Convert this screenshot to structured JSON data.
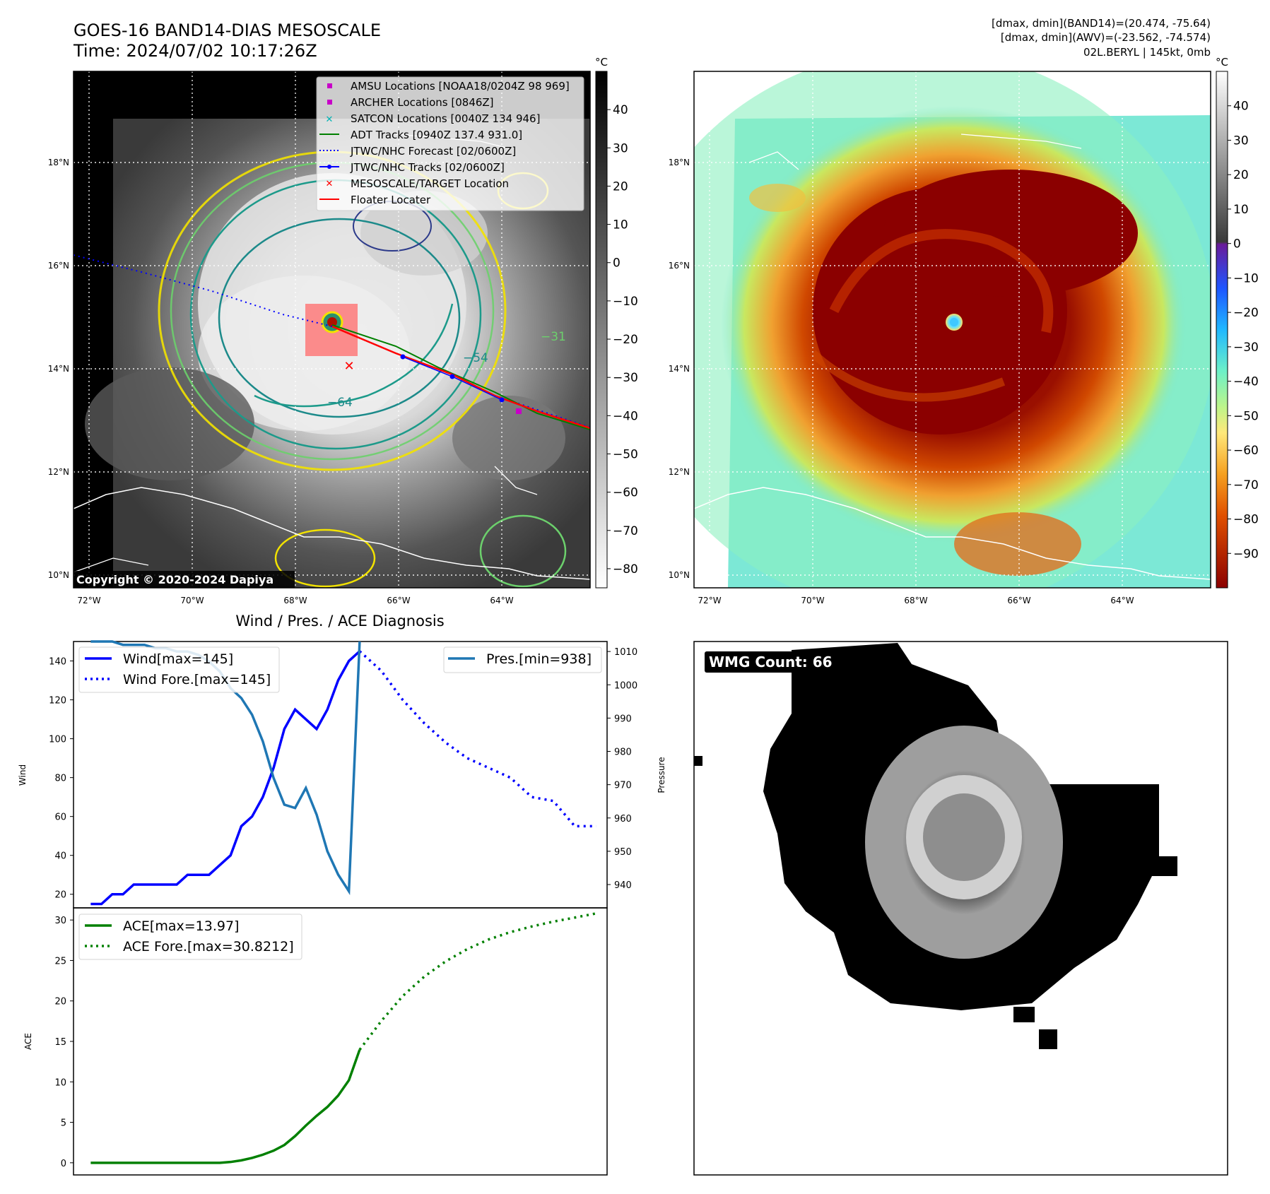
{
  "header": {
    "title": "GOES-16 BAND14-DIAS MESOSCALE",
    "time": "Time: 2024/07/02 10:17:26Z",
    "stats": [
      "[dmax, dmin](BAND14)=(20.474, -75.64)",
      "[dmax, dmin](AWV)=(-23.562, -74.574)",
      "02L.BERYL | 145kt, 0mb"
    ]
  },
  "map_left": {
    "lat_labels": [
      "18°N",
      "16°N",
      "14°N",
      "12°N",
      "10°N"
    ],
    "lon_labels": [
      "72°W",
      "70°W",
      "68°W",
      "66°W",
      "64°W"
    ],
    "lat_values": [
      18,
      16,
      14,
      12,
      10
    ],
    "lon_values": [
      -72,
      -70,
      -68,
      -66,
      -64
    ],
    "cbar_unit": "°C",
    "cbar_ticks": [
      "40",
      "30",
      "20",
      "10",
      "0",
      "−10",
      "−20",
      "−30",
      "−40",
      "−50",
      "−60",
      "−70",
      "−80"
    ],
    "cbar_values": [
      40,
      30,
      20,
      10,
      0,
      -10,
      -20,
      -30,
      -40,
      -50,
      -60,
      -70,
      -80
    ],
    "cbar_range": [
      -85,
      50
    ],
    "contour_labels": [
      "−64",
      "−54",
      "−31"
    ],
    "copyright": "Copyright © 2020-2024 Dapiya",
    "legend": [
      {
        "label": "AMSU Locations [NOAA18/0204Z 98 969]",
        "color": "#c800c8",
        "marker": "square"
      },
      {
        "label": "ARCHER Locations [0846Z]",
        "color": "#c800c8",
        "marker": "square"
      },
      {
        "label": "SATCON Locations [0040Z 134 946]",
        "color": "#00b4b4",
        "marker": "x"
      },
      {
        "label": "ADT Tracks [0940Z 137.4 931.0]",
        "color": "#008000",
        "marker": "line"
      },
      {
        "label": "JTWC/NHC Forecast [02/0600Z]",
        "color": "#0000ff",
        "marker": "dotted"
      },
      {
        "label": "JTWC/NHC Tracks [02/0600Z]",
        "color": "#0000ff",
        "marker": "line-dot"
      },
      {
        "label": "MESOSCALE/TARGET Location",
        "color": "#ff0000",
        "marker": "x"
      },
      {
        "label": "Floater Locater",
        "color": "#ff0000",
        "marker": "line"
      }
    ]
  },
  "map_right": {
    "lat_labels": [
      "18°N",
      "16°N",
      "14°N",
      "12°N",
      "10°N"
    ],
    "lon_labels": [
      "72°W",
      "70°W",
      "68°W",
      "66°W",
      "64°W"
    ],
    "cbar_unit": "°C",
    "cbar_ticks": [
      "40",
      "30",
      "20",
      "10",
      "0",
      "−10",
      "−20",
      "−30",
      "−40",
      "−50",
      "−60",
      "−70",
      "−80",
      "−90"
    ],
    "cbar_values": [
      40,
      30,
      20,
      10,
      0,
      -10,
      -20,
      -30,
      -40,
      -50,
      -60,
      -70,
      -80,
      -90
    ],
    "cbar_range": [
      -100,
      50
    ]
  },
  "wmg": {
    "label": "WMG Count: 66"
  },
  "colors": {
    "wind": "#0000ff",
    "pressure": "#1f77b4",
    "ace": "#008000"
  },
  "chart_data": [
    {
      "type": "line",
      "title": "Wind / Pres. / ACE Diagnosis",
      "ylabel": "Wind",
      "y2label": "Pressure",
      "ylim": [
        13,
        150
      ],
      "y2lim": [
        933,
        1013
      ],
      "yticks": [
        20,
        40,
        60,
        80,
        100,
        120,
        140
      ],
      "y2ticks": [
        940,
        950,
        960,
        970,
        980,
        990,
        1000,
        1010
      ],
      "n": 47,
      "series": [
        {
          "name": "Wind[max=145]",
          "axis": "left",
          "style": "solid",
          "color": "#0000ff",
          "x": [
            0,
            1,
            2,
            3,
            4,
            5,
            6,
            7,
            8,
            9,
            10,
            11,
            12,
            13,
            14,
            15,
            16,
            17,
            18,
            19,
            20,
            21,
            22,
            23,
            24,
            25
          ],
          "values": [
            15,
            15,
            20,
            20,
            25,
            25,
            25,
            25,
            25,
            30,
            30,
            30,
            35,
            40,
            55,
            60,
            70,
            85,
            105,
            115,
            110,
            105,
            115,
            130,
            140,
            145
          ]
        },
        {
          "name": "Wind Fore.[max=145]",
          "axis": "left",
          "style": "dotted",
          "color": "#0000ff",
          "x": [
            25,
            27,
            29,
            31,
            33,
            35,
            37,
            39,
            41,
            43,
            45,
            47
          ],
          "values": [
            145,
            135,
            120,
            108,
            98,
            90,
            85,
            80,
            70,
            68,
            55,
            55
          ]
        },
        {
          "name": "Pres.[min=938]",
          "axis": "right",
          "style": "solid",
          "color": "#1f77b4",
          "x": [
            0,
            1,
            2,
            3,
            4,
            5,
            6,
            7,
            8,
            9,
            10,
            11,
            12,
            13,
            14,
            15,
            16,
            17,
            18,
            19,
            20,
            21,
            22,
            23,
            24,
            25
          ],
          "values": [
            1013,
            1013,
            1013,
            1012,
            1012,
            1012,
            1011,
            1011,
            1010,
            1010,
            1009,
            1007,
            1004,
            999,
            996,
            991,
            983,
            972,
            964,
            963,
            969,
            961,
            950,
            943,
            938,
            1013
          ]
        }
      ]
    },
    {
      "type": "line",
      "ylabel": "ACE",
      "ylim": [
        -1.5,
        31.5
      ],
      "yticks": [
        0,
        5,
        10,
        15,
        20,
        25,
        30
      ],
      "series": [
        {
          "name": "ACE[max=13.97]",
          "style": "solid",
          "color": "#008000",
          "x": [
            0,
            2,
            4,
            6,
            8,
            10,
            12,
            13,
            14,
            15,
            16,
            17,
            18,
            19,
            20,
            21,
            22,
            23,
            24,
            25
          ],
          "values": [
            0,
            0,
            0,
            0,
            0,
            0,
            0,
            0.1,
            0.3,
            0.6,
            1,
            1.5,
            2.2,
            3.3,
            4.6,
            5.8,
            6.9,
            8.3,
            10.2,
            13.97
          ]
        },
        {
          "name": "ACE Fore.[max=30.8212]",
          "style": "dotted",
          "color": "#008000",
          "x": [
            25,
            27,
            29,
            31,
            33,
            35,
            37,
            39,
            41,
            43,
            45,
            47
          ],
          "values": [
            13.97,
            17.5,
            20.6,
            23,
            24.9,
            26.4,
            27.6,
            28.5,
            29.2,
            29.8,
            30.3,
            30.82
          ]
        }
      ]
    }
  ]
}
